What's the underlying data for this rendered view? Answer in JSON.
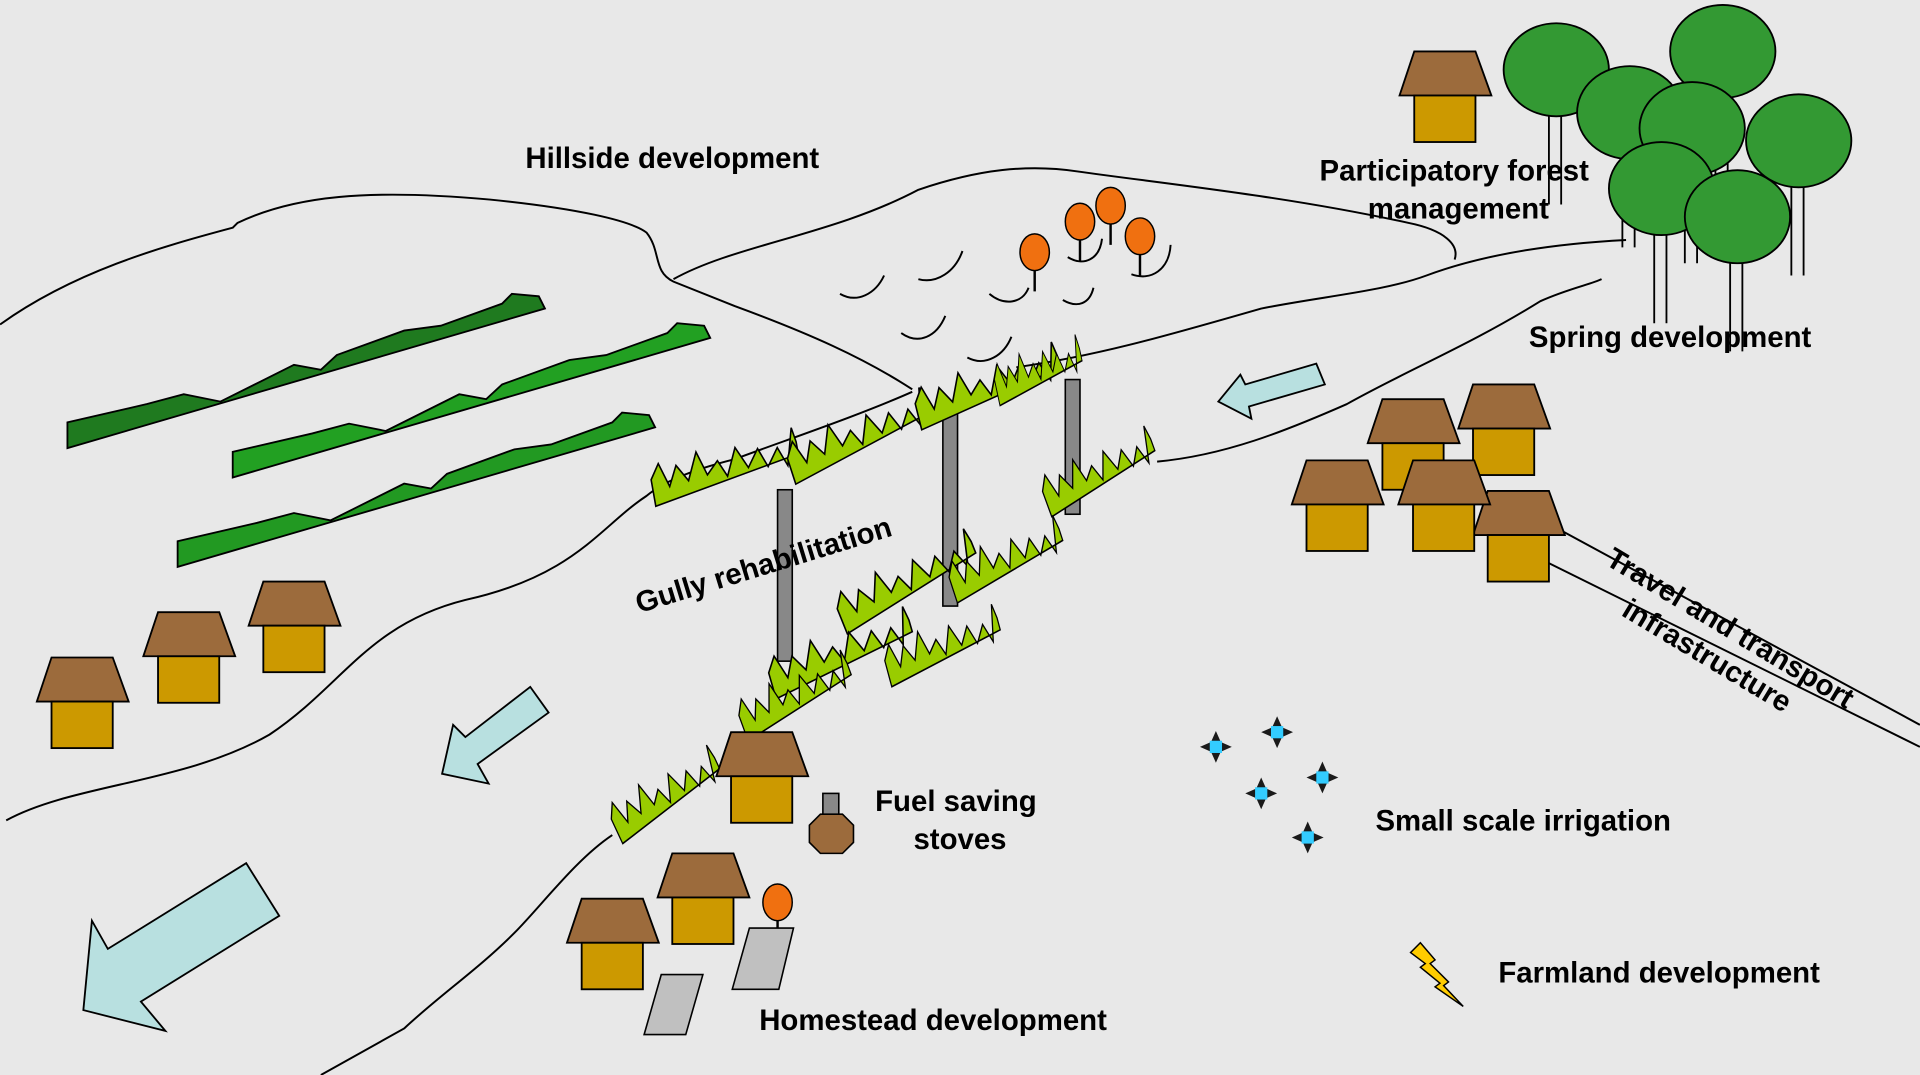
{
  "labels": {
    "hillside": "Hillside development",
    "forest": [
      "Participatory forest",
      "management"
    ],
    "spring": "Spring development",
    "gully": "Gully rehabilitation",
    "stoves": [
      "Fuel saving",
      "stoves"
    ],
    "irrigation": "Small scale irrigation",
    "transport": [
      "Travel and transport",
      "infrastructure"
    ],
    "farmland": "Farmland development",
    "homestead": "Homestead development"
  }
}
